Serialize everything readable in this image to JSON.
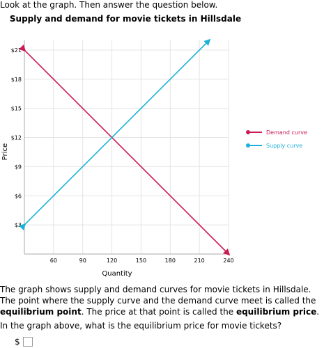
{
  "intro_text": "Look at the graph. Then answer the question below.",
  "chart_data": {
    "type": "line",
    "title": "Supply and demand for movie tickets in Hillsdale",
    "xlabel": "Quantity",
    "ylabel": "Price",
    "xlim": [
      30,
      240
    ],
    "ylim": [
      0,
      22
    ],
    "x_ticks": [
      "60",
      "90",
      "120",
      "150",
      "180",
      "210",
      "240"
    ],
    "y_ticks": [
      "$3",
      "$6",
      "$9",
      "$12",
      "$15",
      "$18",
      "$21"
    ],
    "grid": true,
    "legend_position": "right",
    "series": [
      {
        "name": "Demand curve",
        "color": "#cc1a52",
        "points": [
          [
            30,
            21
          ],
          [
            240,
            0
          ]
        ]
      },
      {
        "name": "Supply curve",
        "color": "#1bb1d9",
        "points": [
          [
            30,
            3
          ],
          [
            220,
            22
          ]
        ]
      }
    ]
  },
  "paragraph": {
    "part1": "The graph shows supply and demand curves for movie tickets in Hillsdale. The point where the supply curve and the demand curve meet is called the ",
    "term1": "equilibrium point",
    "part2": ". The price at that point is called the ",
    "term2": "equilibrium price",
    "part3": "."
  },
  "question": "In the graph above, what is the equilibrium price for movie tickets?",
  "answer": {
    "prefix": "$",
    "value": ""
  }
}
